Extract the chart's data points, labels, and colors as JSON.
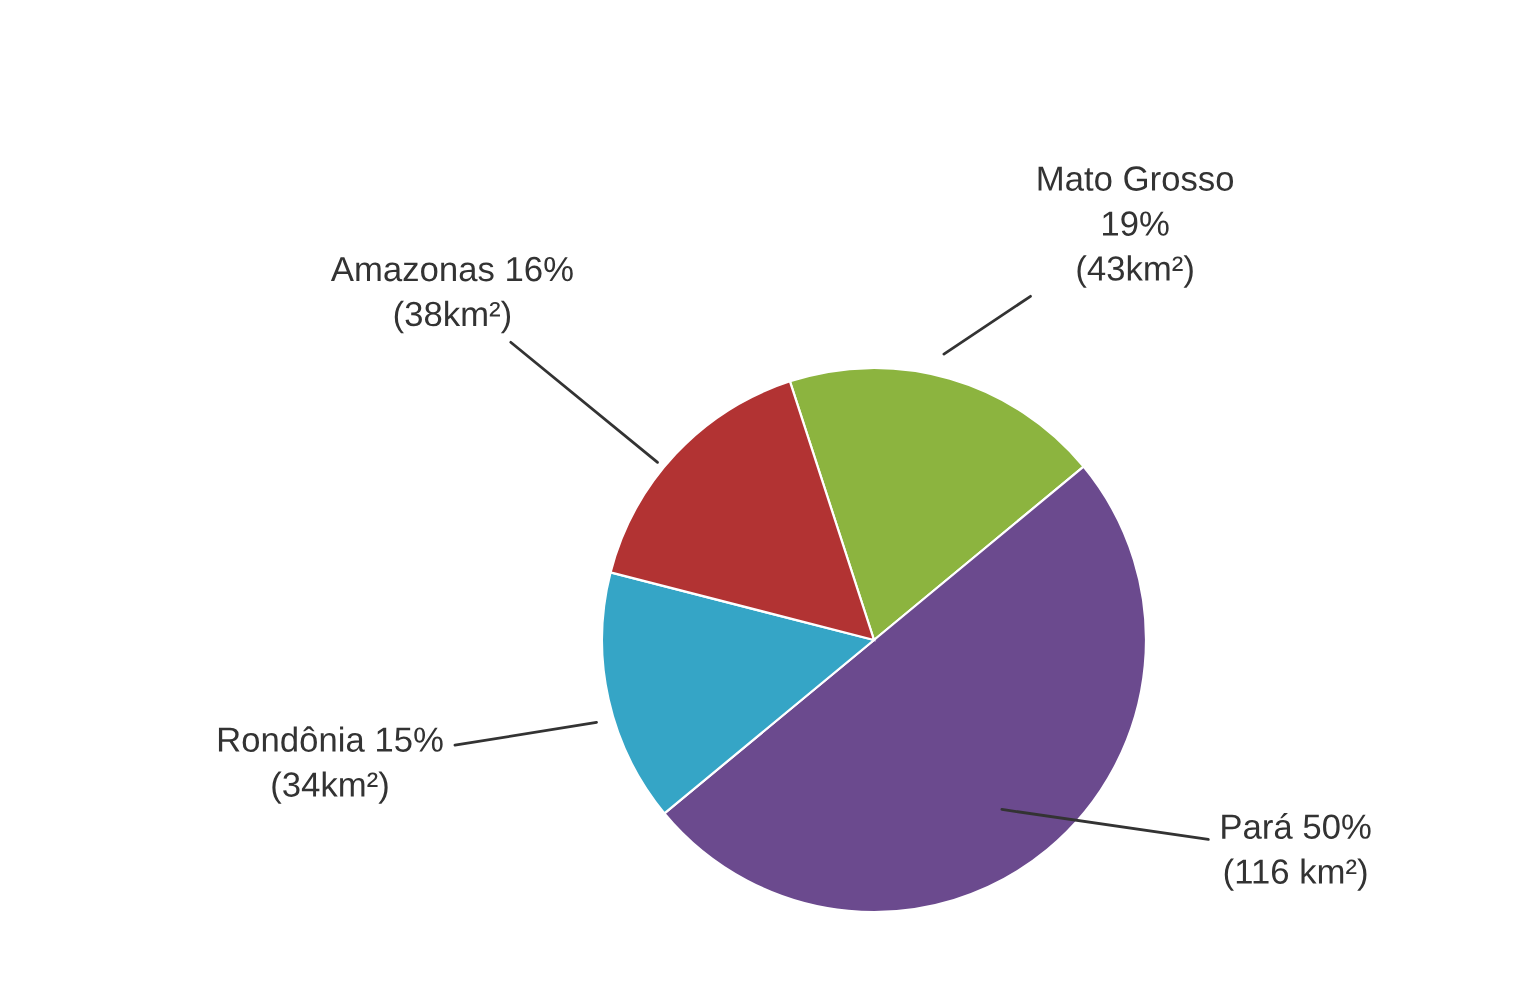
{
  "chart_data": {
    "type": "pie",
    "categories": [
      "Mato Grosso",
      "Pará",
      "Rondônia",
      "Amazonas"
    ],
    "values": [
      19,
      50,
      15,
      16
    ],
    "colors": [
      "#8cb43f",
      "#6b4a8e",
      "#35a5c6",
      "#b23333"
    ],
    "value_labels": [
      "19%\n(43km²)",
      "50%\n(116 km²)",
      "15%\n(34km²)",
      "16%\n(38km²)"
    ],
    "legend": false
  }
}
